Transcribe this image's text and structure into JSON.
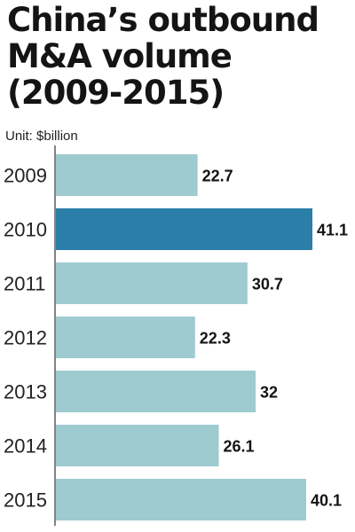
{
  "chart_data": {
    "type": "bar",
    "orientation": "horizontal",
    "title": "China’s outbound M&A volume (2009-2015)",
    "title_lines": [
      "China’s outbound",
      "M&A volume",
      "(2009-2015)"
    ],
    "unit": "Unit: $billion",
    "categories": [
      "2009",
      "2010",
      "2011",
      "2012",
      "2013",
      "2014",
      "2015"
    ],
    "values": [
      22.7,
      41.1,
      30.7,
      22.3,
      32,
      26.1,
      40.1
    ],
    "value_labels": [
      "22.7",
      "41.1",
      "30.7",
      "22.3",
      "32",
      "26.1",
      "40.1"
    ],
    "highlight_index": 1,
    "colors": {
      "bar": "#9ecbd0",
      "highlight": "#2a7ea7",
      "axis": "#5a5a5a"
    },
    "xlim": [
      0,
      41.1
    ],
    "grid": false,
    "legend": "none"
  }
}
